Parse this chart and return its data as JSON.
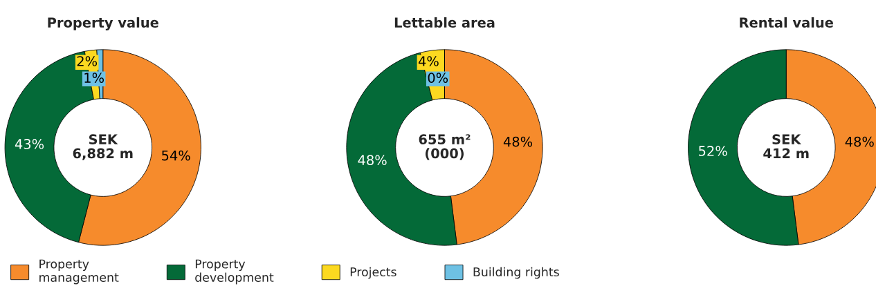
{
  "chart_data": [
    {
      "type": "donut",
      "title": "Property value",
      "categories": [
        "Property management",
        "Property development",
        "Projects",
        "Building rights"
      ],
      "values": [
        54,
        43,
        2,
        1
      ],
      "value_labels": [
        "54%",
        "43%",
        "2%",
        "1%"
      ],
      "colors": [
        "#f68b2c",
        "#046a38",
        "#fcd920",
        "#6ec1e4"
      ],
      "annotations": [
        "SEK\n6,882 m"
      ],
      "legend": "bottom"
    },
    {
      "type": "donut",
      "title": "Lettable area",
      "categories": [
        null,
        null,
        null,
        null
      ],
      "values": [
        48,
        48,
        4,
        0
      ],
      "value_labels": [
        "48%",
        "48%",
        "4%",
        "0%"
      ],
      "colors": [
        "#f68b2c",
        "#046a38",
        "#fcd920",
        "#6ec1e4"
      ],
      "annotations": [
        "655 m²\n(000)"
      ]
    },
    {
      "type": "donut",
      "title": "Rental value",
      "categories": [
        null,
        null
      ],
      "values": [
        48,
        52
      ],
      "value_labels": [
        "48%",
        "52%"
      ],
      "colors": [
        "#f68b2c",
        "#046a38"
      ],
      "annotations": [
        "SEK\n412 m"
      ]
    }
  ]
}
